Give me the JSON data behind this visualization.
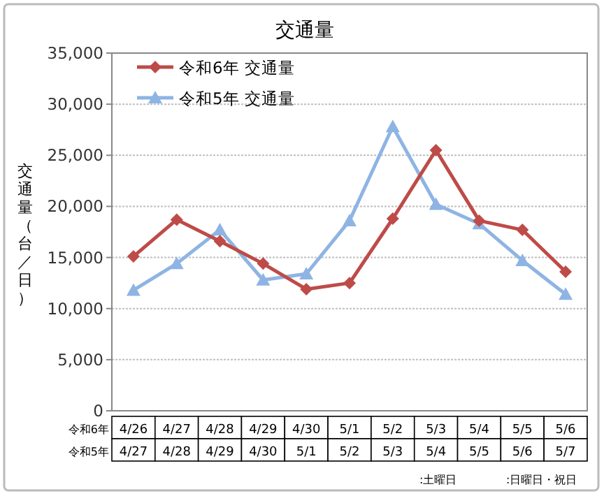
{
  "chart_data": {
    "type": "line",
    "title": "交通量",
    "ylabel": "交通量（台／日）",
    "categories": [
      "4/26",
      "4/27",
      "4/28",
      "4/29",
      "4/30",
      "5/1",
      "5/2",
      "5/3",
      "5/4",
      "5/5",
      "5/6"
    ],
    "series": [
      {
        "name": "令和6年 交通量",
        "color": "#be4b48",
        "marker": "diamond",
        "values": [
          15100,
          18700,
          16600,
          14400,
          11900,
          12500,
          18800,
          25500,
          18600,
          17700,
          13600
        ]
      },
      {
        "name": "令和5年 交通量",
        "color": "#8eb4e3",
        "marker": "triangle",
        "values": [
          11800,
          14400,
          17700,
          12800,
          13400,
          18600,
          27800,
          20200,
          18300,
          14700,
          11400
        ]
      }
    ],
    "ylim": [
      0,
      35000
    ],
    "yticks": [
      {
        "value": 0,
        "label": "0"
      },
      {
        "value": 5000,
        "label": "5,000"
      },
      {
        "value": 10000,
        "label": "10,000"
      },
      {
        "value": 15000,
        "label": "15,000"
      },
      {
        "value": 20000,
        "label": "20,000"
      },
      {
        "value": 25000,
        "label": "25,000"
      },
      {
        "value": 30000,
        "label": "30,000"
      },
      {
        "value": 35000,
        "label": "35,000"
      }
    ],
    "grid": "y",
    "legend": "top left",
    "annotations": [
      "令和6年",
      "令和5年",
      "4/27",
      "4/28",
      "4/29",
      "4/30",
      "5/1",
      "5/2",
      "5/3",
      "5/4",
      "5/5",
      "5/6",
      "5/7",
      ":土曜日",
      ":日曜日・祝日"
    ]
  }
}
